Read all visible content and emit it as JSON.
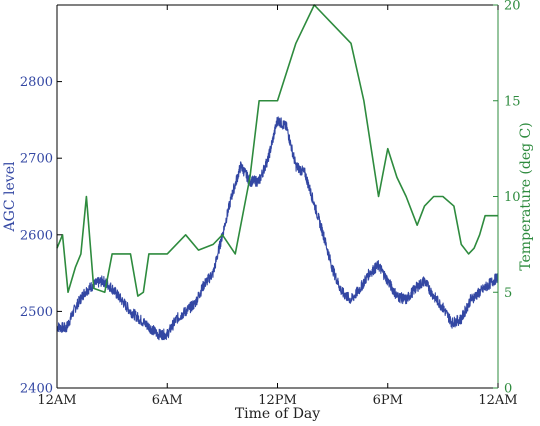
{
  "chart_data": {
    "type": "line",
    "title": "",
    "xlabel": "Time of Day",
    "x_ticks": [
      "12AM",
      "6AM",
      "12PM",
      "6PM",
      "12AM"
    ],
    "x_tick_hours": [
      0,
      6,
      12,
      18,
      24
    ],
    "xlim": [
      0,
      24
    ],
    "y_left": {
      "label": "AGC level",
      "ylim": [
        2400,
        2900
      ],
      "ticks": [
        2400,
        2500,
        2600,
        2700,
        2800
      ],
      "color": "#3347a3"
    },
    "y_right": {
      "label": "Temperature (deg C)",
      "ylim": [
        0,
        20
      ],
      "ticks": [
        0,
        5,
        10,
        15,
        20
      ],
      "color": "#2e8b3e"
    },
    "grid": false,
    "legend": "none",
    "series": [
      {
        "axis": "left",
        "color": "#3347a3",
        "x": [
          0,
          0.5,
          1.0,
          1.5,
          2.0,
          2.5,
          3.0,
          3.5,
          4.0,
          4.5,
          5.0,
          5.5,
          6.0,
          6.5,
          7.0,
          7.5,
          8.0,
          8.5,
          9.0,
          9.5,
          10.0,
          10.5,
          11.0,
          11.5,
          12.0,
          12.5,
          13.0,
          13.5,
          14.0,
          14.5,
          15.0,
          15.5,
          16.0,
          16.5,
          17.0,
          17.5,
          18.0,
          18.5,
          19.0,
          19.5,
          20.0,
          20.5,
          21.0,
          21.5,
          22.0,
          22.5,
          23.0,
          23.5,
          24.0
        ],
        "values": [
          2480,
          2478,
          2505,
          2525,
          2535,
          2540,
          2530,
          2515,
          2500,
          2490,
          2480,
          2470,
          2470,
          2490,
          2500,
          2510,
          2535,
          2550,
          2600,
          2650,
          2690,
          2670,
          2670,
          2700,
          2750,
          2740,
          2690,
          2680,
          2640,
          2600,
          2555,
          2525,
          2515,
          2530,
          2550,
          2560,
          2540,
          2520,
          2515,
          2530,
          2540,
          2520,
          2505,
          2485,
          2490,
          2515,
          2525,
          2535,
          2545
        ]
      },
      {
        "axis": "right",
        "color": "#2e8b3e",
        "x": [
          0,
          0.3,
          0.6,
          1.0,
          1.3,
          1.6,
          2.0,
          2.6,
          3.0,
          3.3,
          3.7,
          4.0,
          4.4,
          4.7,
          5.0,
          6.0,
          7.0,
          7.7,
          8.5,
          9.0,
          9.7,
          10.5,
          11.0,
          12.0,
          13.0,
          14.0,
          15.0,
          16.0,
          16.7,
          17.5,
          18.0,
          18.5,
          19.0,
          19.6,
          20.0,
          20.5,
          21.0,
          21.6,
          22.0,
          22.4,
          22.7,
          23.0,
          23.3,
          23.7,
          24.0
        ],
        "values": [
          7.3,
          8.0,
          5.0,
          6.3,
          7.0,
          10.0,
          5.2,
          5.0,
          7.0,
          7.0,
          7.0,
          7.0,
          4.8,
          5.0,
          7.0,
          7.0,
          8.0,
          7.2,
          7.5,
          8.0,
          7.0,
          11.0,
          15.0,
          15.0,
          18.0,
          20.0,
          19.0,
          18.0,
          15.0,
          10.0,
          12.5,
          11.0,
          10.0,
          8.5,
          9.5,
          10.0,
          10.0,
          9.5,
          7.5,
          7.0,
          7.3,
          8.0,
          9.0,
          9.0,
          9.0
        ]
      }
    ]
  }
}
